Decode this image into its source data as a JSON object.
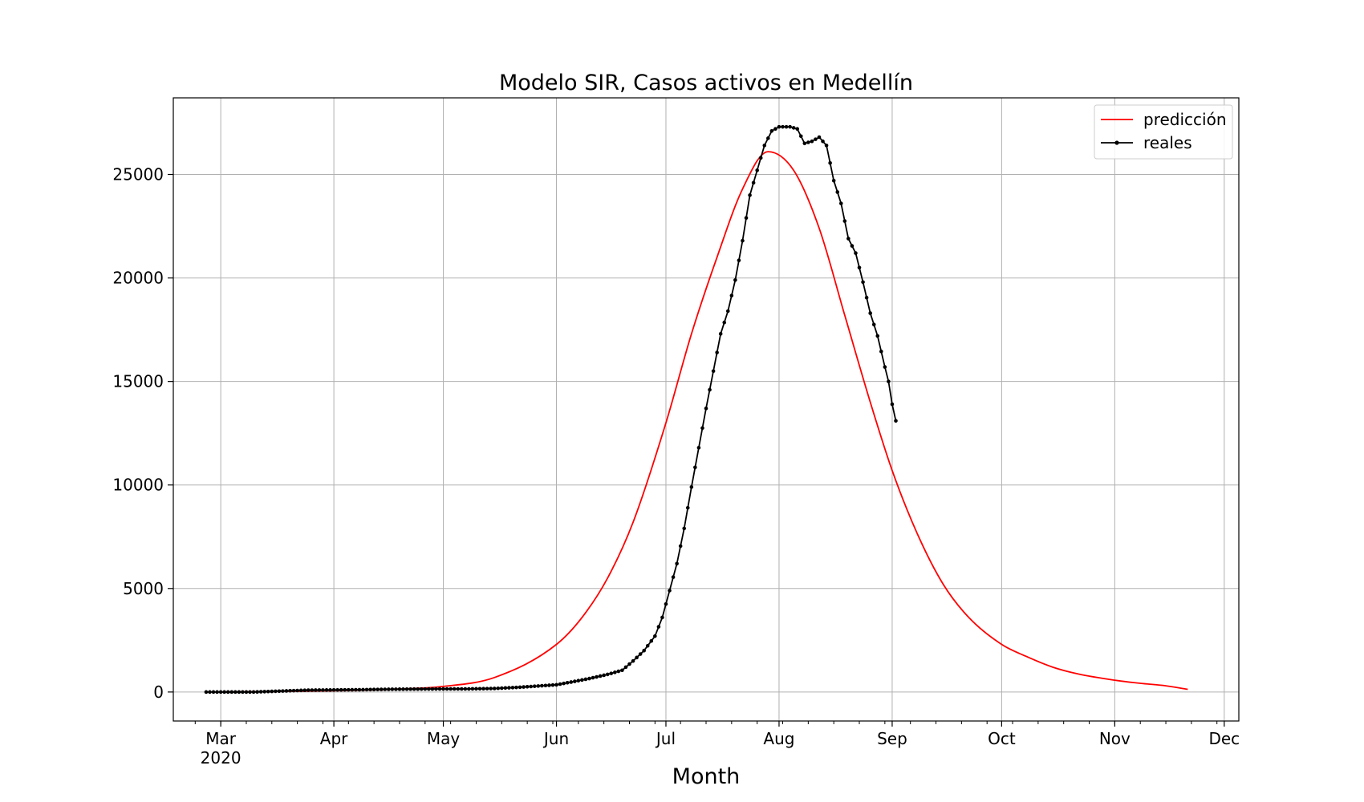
{
  "chart_data": {
    "type": "line",
    "title": "Modelo SIR, Casos activos en Medellín",
    "xlabel": "Month",
    "ylabel": "",
    "xlim": [
      "2020-02-17",
      "2020-12-05"
    ],
    "ylim": [
      -1400,
      28700
    ],
    "grid": true,
    "legend_position": "top-right",
    "x_ticks": [
      {
        "date": "2020-03-01",
        "label": "Mar",
        "sublabel": "2020"
      },
      {
        "date": "2020-04-01",
        "label": "Apr",
        "sublabel": ""
      },
      {
        "date": "2020-05-01",
        "label": "May",
        "sublabel": ""
      },
      {
        "date": "2020-06-01",
        "label": "Jun",
        "sublabel": ""
      },
      {
        "date": "2020-07-01",
        "label": "Jul",
        "sublabel": ""
      },
      {
        "date": "2020-08-01",
        "label": "Aug",
        "sublabel": ""
      },
      {
        "date": "2020-09-01",
        "label": "Sep",
        "sublabel": ""
      },
      {
        "date": "2020-10-01",
        "label": "Oct",
        "sublabel": ""
      },
      {
        "date": "2020-11-01",
        "label": "Nov",
        "sublabel": ""
      },
      {
        "date": "2020-12-01",
        "label": "Dec",
        "sublabel": ""
      }
    ],
    "y_ticks": [
      {
        "value": 0,
        "label": "0"
      },
      {
        "value": 5000,
        "label": "5000"
      },
      {
        "value": 10000,
        "label": "10000"
      },
      {
        "value": 15000,
        "label": "15000"
      },
      {
        "value": 20000,
        "label": "20000"
      },
      {
        "value": 25000,
        "label": "25000"
      }
    ],
    "series": [
      {
        "name": "predicción",
        "color": "#ff0000",
        "marker": "none",
        "points": [
          [
            "2020-03-01",
            0
          ],
          [
            "2020-04-01",
            60
          ],
          [
            "2020-04-15",
            120
          ],
          [
            "2020-05-01",
            270
          ],
          [
            "2020-05-15",
            700
          ],
          [
            "2020-06-01",
            2300
          ],
          [
            "2020-06-08",
            3600
          ],
          [
            "2020-06-15",
            5500
          ],
          [
            "2020-06-22",
            8200
          ],
          [
            "2020-07-01",
            13000
          ],
          [
            "2020-07-08",
            17300
          ],
          [
            "2020-07-15",
            21000
          ],
          [
            "2020-07-22",
            24300
          ],
          [
            "2020-07-29",
            26100
          ],
          [
            "2020-08-05",
            25200
          ],
          [
            "2020-08-12",
            22400
          ],
          [
            "2020-08-19",
            18200
          ],
          [
            "2020-08-26",
            14000
          ],
          [
            "2020-09-01",
            10700
          ],
          [
            "2020-09-08",
            7600
          ],
          [
            "2020-09-15",
            5200
          ],
          [
            "2020-09-22",
            3600
          ],
          [
            "2020-10-01",
            2300
          ],
          [
            "2020-10-08",
            1700
          ],
          [
            "2020-10-15",
            1200
          ],
          [
            "2020-10-22",
            870
          ],
          [
            "2020-11-01",
            570
          ],
          [
            "2020-11-08",
            420
          ],
          [
            "2020-11-15",
            300
          ],
          [
            "2020-11-21",
            130
          ]
        ]
      },
      {
        "name": "reales",
        "color": "#000000",
        "marker": "dot",
        "points": [
          [
            "2020-02-26",
            0
          ],
          [
            "2020-03-01",
            0
          ],
          [
            "2020-03-05",
            0
          ],
          [
            "2020-03-10",
            0
          ],
          [
            "2020-03-15",
            30
          ],
          [
            "2020-03-20",
            60
          ],
          [
            "2020-03-25",
            90
          ],
          [
            "2020-04-01",
            100
          ],
          [
            "2020-04-08",
            110
          ],
          [
            "2020-04-15",
            130
          ],
          [
            "2020-04-22",
            140
          ],
          [
            "2020-05-01",
            150
          ],
          [
            "2020-05-08",
            150
          ],
          [
            "2020-05-15",
            170
          ],
          [
            "2020-05-22",
            230
          ],
          [
            "2020-06-01",
            350
          ],
          [
            "2020-06-05",
            480
          ],
          [
            "2020-06-10",
            650
          ],
          [
            "2020-06-15",
            850
          ],
          [
            "2020-06-19",
            1050
          ],
          [
            "2020-06-22",
            1500
          ],
          [
            "2020-06-25",
            2000
          ],
          [
            "2020-06-28",
            2700
          ],
          [
            "2020-06-30",
            3600
          ],
          [
            "2020-07-02",
            4900
          ],
          [
            "2020-07-04",
            6200
          ],
          [
            "2020-07-06",
            7900
          ],
          [
            "2020-07-08",
            9900
          ],
          [
            "2020-07-10",
            11800
          ],
          [
            "2020-07-12",
            13700
          ],
          [
            "2020-07-14",
            15500
          ],
          [
            "2020-07-16",
            17300
          ],
          [
            "2020-07-18",
            18400
          ],
          [
            "2020-07-20",
            19900
          ],
          [
            "2020-07-22",
            21800
          ],
          [
            "2020-07-24",
            24000
          ],
          [
            "2020-07-26",
            25200
          ],
          [
            "2020-07-28",
            26400
          ],
          [
            "2020-07-30",
            27100
          ],
          [
            "2020-08-01",
            27300
          ],
          [
            "2020-08-04",
            27300
          ],
          [
            "2020-08-06",
            27200
          ],
          [
            "2020-08-08",
            26500
          ],
          [
            "2020-08-10",
            26600
          ],
          [
            "2020-08-12",
            26800
          ],
          [
            "2020-08-14",
            26400
          ],
          [
            "2020-08-16",
            24700
          ],
          [
            "2020-08-18",
            23600
          ],
          [
            "2020-08-20",
            21900
          ],
          [
            "2020-08-22",
            21200
          ],
          [
            "2020-08-24",
            19800
          ],
          [
            "2020-08-26",
            18300
          ],
          [
            "2020-08-28",
            17200
          ],
          [
            "2020-08-30",
            15700
          ],
          [
            "2020-08-31",
            15000
          ],
          [
            "2020-09-01",
            13900
          ],
          [
            "2020-09-02",
            13100
          ]
        ]
      }
    ]
  }
}
